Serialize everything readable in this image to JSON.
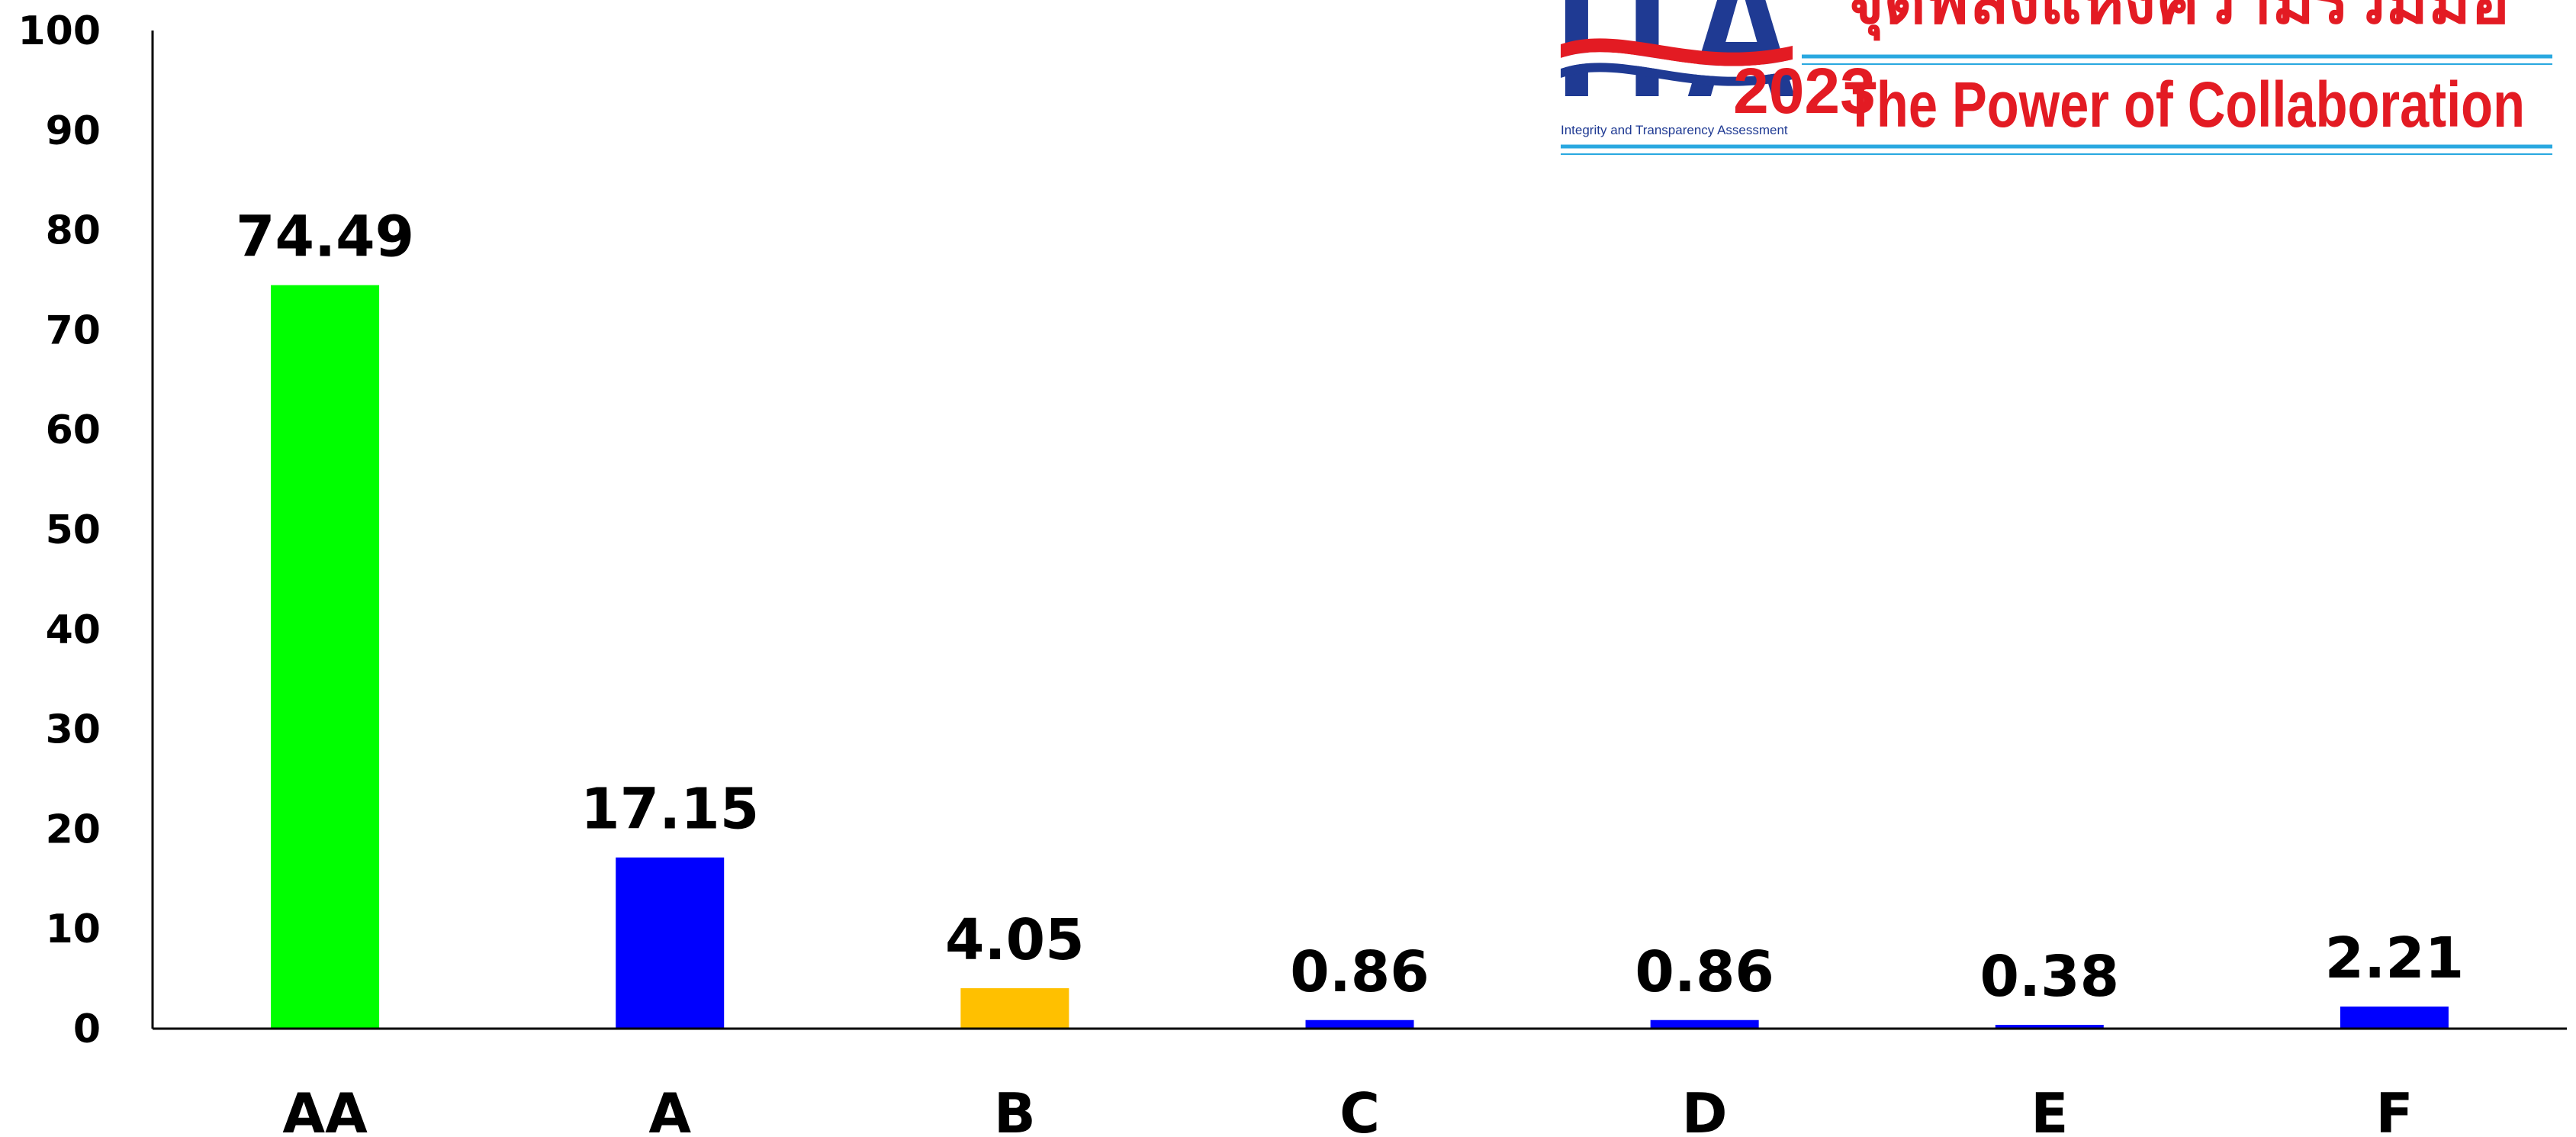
{
  "chart_data": {
    "type": "bar",
    "categories": [
      "AA",
      "A",
      "B",
      "C",
      "D",
      "E",
      "F"
    ],
    "values": [
      74.49,
      17.15,
      4.05,
      0.86,
      0.86,
      0.38,
      2.21
    ],
    "value_labels": [
      "74.49",
      "17.15",
      "4.05",
      "0.86",
      "0.86",
      "0.38",
      "2.21"
    ],
    "bar_colors": [
      "#00ff00",
      "#0000ff",
      "#ffc000",
      "#0000ff",
      "#0000ff",
      "#0000ff",
      "#0000ff"
    ],
    "title": "",
    "xlabel": "",
    "ylabel": "",
    "ylim": [
      0,
      100
    ],
    "yticks": [
      0,
      10,
      20,
      30,
      40,
      50,
      60,
      70,
      80,
      90,
      100
    ],
    "grid": false,
    "legend": "none"
  },
  "logo": {
    "name": "ITA",
    "year": "2023",
    "subtitle": "Integrity and Transparency Assessment",
    "thai_tagline": "จุดพลังแห่งความร่วมมือ",
    "tagline": "The Power of Collaboration",
    "colors": {
      "navy": "#1f3a93",
      "red": "#e31b23",
      "light_blue": "#29a8e0"
    }
  }
}
